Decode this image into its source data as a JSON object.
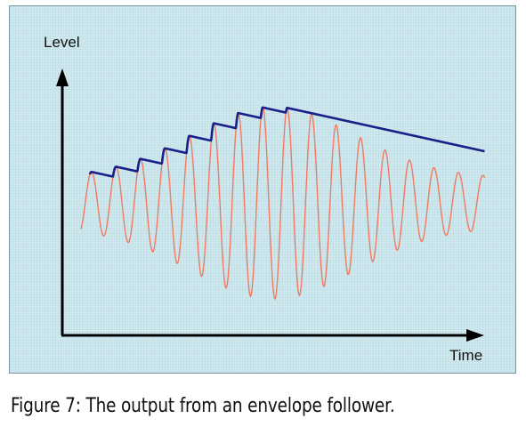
{
  "figure": {
    "y_axis_label": "Level",
    "x_axis_label": "Time",
    "caption": "Figure 7: The output from an envelope follower."
  },
  "colors": {
    "panel_background": "#cfe9ee",
    "input_signal": "#f07a62",
    "envelope_output": "#1a1f8a",
    "axes": "#000000"
  }
}
